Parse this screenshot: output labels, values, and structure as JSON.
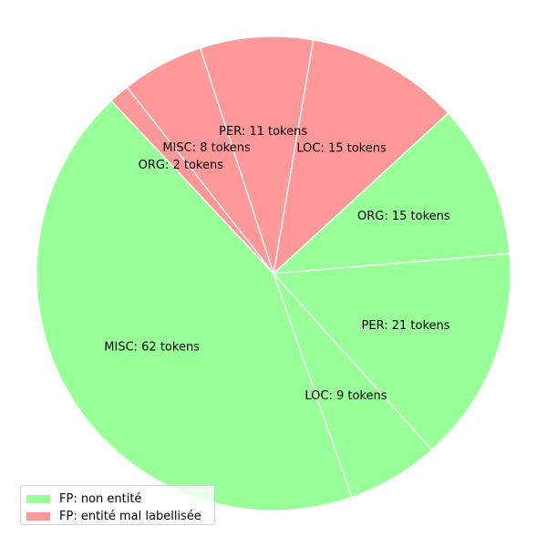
{
  "chart_data": {
    "type": "pie",
    "slices": [
      {
        "label": "MISC: 62 tokens",
        "category": "MISC",
        "value": 62,
        "series": "FP: non entité"
      },
      {
        "label": "LOC: 9 tokens",
        "category": "LOC",
        "value": 9,
        "series": "FP: non entité"
      },
      {
        "label": "PER: 21 tokens",
        "category": "PER",
        "value": 21,
        "series": "FP: non entité"
      },
      {
        "label": "ORG: 15 tokens",
        "category": "ORG",
        "value": 15,
        "series": "FP: non entité"
      },
      {
        "label": "LOC: 15 tokens",
        "category": "LOC",
        "value": 15,
        "series": "FP: entité mal labellisée"
      },
      {
        "label": "PER: 11 tokens",
        "category": "PER",
        "value": 11,
        "series": "FP: entité mal labellisée"
      },
      {
        "label": "MISC: 8 tokens",
        "category": "MISC",
        "value": 8,
        "series": "FP: entité mal labellisée"
      },
      {
        "label": "ORG: 2 tokens",
        "category": "ORG",
        "value": 2,
        "series": "FP: entité mal labellisée"
      }
    ],
    "legend": [
      {
        "label": "FP: non entité",
        "color": "#99ff99"
      },
      {
        "label": "FP: entité mal labellisée",
        "color": "#ff9999"
      }
    ],
    "legend_position": "lower-left",
    "title": ""
  }
}
